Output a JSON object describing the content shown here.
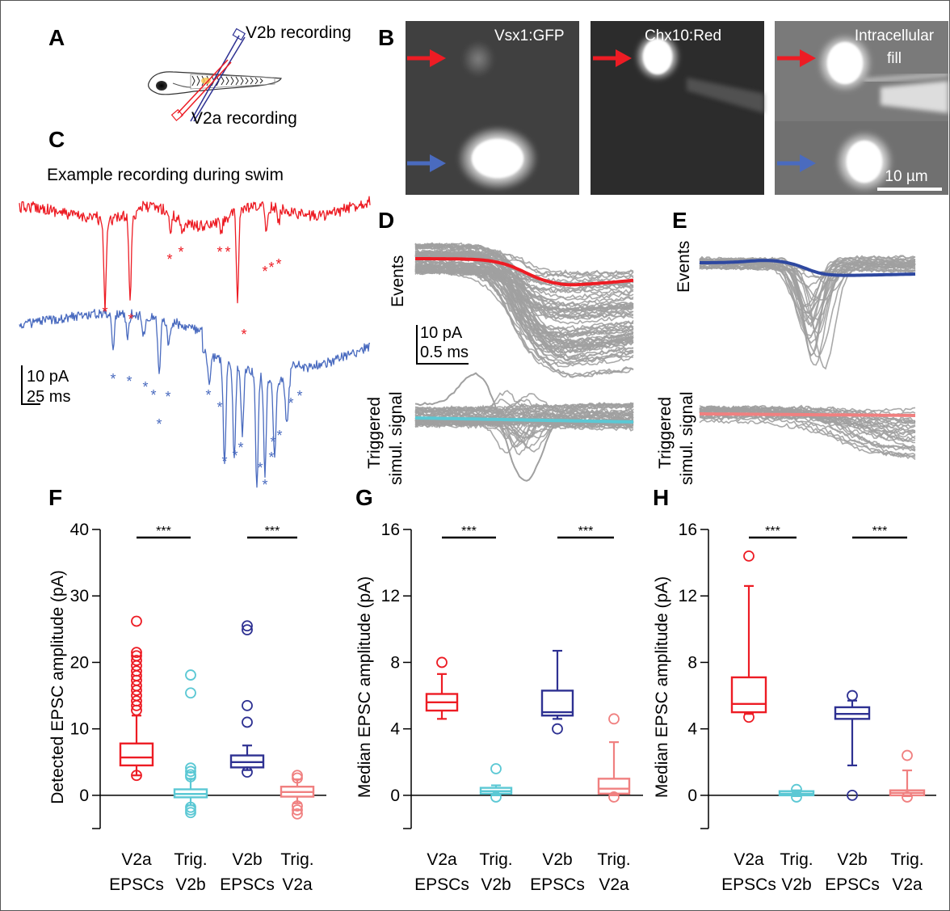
{
  "panels": {
    "A": {
      "letter": "A",
      "v2b_label": "V2b recording",
      "v2a_label": "V2a recording",
      "v2b_color": "#2e3192",
      "v2a_color": "#ed1c24"
    },
    "B": {
      "letter": "B",
      "images": [
        "Vsx1:GFP",
        "Chx10:Red",
        "Intracellular fill"
      ],
      "image3_line1": "Intracellular",
      "image3_line2": "fill",
      "scale_bar": "10 µm",
      "red_arrow_color": "#ed1c24",
      "blue_arrow_color": "#4a6bbf"
    },
    "C": {
      "letter": "C",
      "title": "Example recording during swim",
      "scale_current": "10 pA",
      "scale_time": "25 ms",
      "red_trace_color": "#ed1c24",
      "blue_trace_color": "#4a6bbf",
      "event_marker": "*"
    },
    "D": {
      "letter": "D",
      "events_label": "Events",
      "triggered_label_line1": "Triggered",
      "triggered_label_line2": "simul. signal",
      "scale_current": "10 pA",
      "scale_time": "0.5 ms",
      "mean_event_color": "#ed1c24",
      "mean_triggered_color": "#5bc8d4",
      "trace_color": "#a0a0a0"
    },
    "E": {
      "letter": "E",
      "events_label": "Events",
      "triggered_label_line1": "Triggered",
      "triggered_label_line2": "simul. signal",
      "mean_event_color": "#2e48a0",
      "mean_triggered_color": "#f08080",
      "trace_color": "#a0a0a0"
    }
  },
  "chart_data": [
    {
      "panel": "F",
      "type": "box",
      "ylabel": "Detected EPSC amplitude (pA)",
      "ylim": [
        -5,
        40
      ],
      "yticks": [
        0,
        10,
        20,
        30,
        40
      ],
      "categories": [
        {
          "line1": "V2a",
          "line2": "EPSCs"
        },
        {
          "line1": "Trig.",
          "line2": "V2b"
        },
        {
          "line1": "V2b",
          "line2": "EPSCs"
        },
        {
          "line1": "Trig.",
          "line2": "V2a"
        }
      ],
      "colors": [
        "#ed1c24",
        "#5bc8d4",
        "#2e3192",
        "#f08080"
      ],
      "boxes": [
        {
          "q1": 4.5,
          "median": 5.7,
          "q3": 7.8,
          "whisker_low": 3.0,
          "whisker_high": 12.0
        },
        {
          "q1": -0.3,
          "median": 0.2,
          "q3": 0.9,
          "whisker_low": -1.5,
          "whisker_high": 2.5
        },
        {
          "q1": 4.2,
          "median": 5.0,
          "q3": 6.0,
          "whisker_low": 3.8,
          "whisker_high": 7.5
        },
        {
          "q1": -0.2,
          "median": 0.5,
          "q3": 1.3,
          "whisker_low": -1.2,
          "whisker_high": 2.4
        }
      ],
      "outliers": [
        [
          26.2,
          21.5,
          21.0,
          20.3,
          19.5,
          18.7,
          18.0,
          17.3,
          16.5,
          15.8,
          15.0,
          14.2,
          13.5,
          12.8,
          3.0
        ],
        [
          18.1,
          15.4,
          4.1,
          3.6,
          3.1,
          2.8,
          -1.8,
          -2.2,
          -2.6
        ],
        [
          25.5,
          24.9,
          13.5,
          11.0,
          3.5
        ],
        [
          3.0,
          2.6,
          -1.6,
          -2.2,
          -2.8
        ]
      ],
      "significance": [
        {
          "from": 0,
          "to": 1,
          "label": "***"
        },
        {
          "from": 2,
          "to": 3,
          "label": "***"
        }
      ]
    },
    {
      "panel": "G",
      "type": "box",
      "ylabel": "Median EPSC amplitude (pA)",
      "ylim": [
        -2,
        16
      ],
      "yticks": [
        0,
        4,
        8,
        12,
        16
      ],
      "categories": [
        {
          "line1": "V2a",
          "line2": "EPSCs"
        },
        {
          "line1": "Trig.",
          "line2": "V2b"
        },
        {
          "line1": "V2b",
          "line2": "EPSCs"
        },
        {
          "line1": "Trig.",
          "line2": "V2a"
        }
      ],
      "colors": [
        "#ed1c24",
        "#5bc8d4",
        "#2e3192",
        "#f08080"
      ],
      "boxes": [
        {
          "q1": 5.1,
          "median": 5.6,
          "q3": 6.1,
          "whisker_low": 4.6,
          "whisker_high": 7.3
        },
        {
          "q1": 0.1,
          "median": 0.25,
          "q3": 0.45,
          "whisker_low": 0.0,
          "whisker_high": 0.6
        },
        {
          "q1": 4.8,
          "median": 5.0,
          "q3": 6.3,
          "whisker_low": 4.6,
          "whisker_high": 8.7
        },
        {
          "q1": 0.1,
          "median": 0.4,
          "q3": 1.0,
          "whisker_low": 0.0,
          "whisker_high": 3.2
        }
      ],
      "outliers": [
        [
          8.0
        ],
        [
          1.6,
          -0.1
        ],
        [
          4.0
        ],
        [
          4.6,
          -0.1
        ]
      ],
      "significance": [
        {
          "from": 0,
          "to": 1,
          "label": "***"
        },
        {
          "from": 2,
          "to": 3,
          "label": "***"
        }
      ]
    },
    {
      "panel": "H",
      "type": "box",
      "ylabel": "Median EPSC amplitude (pA)",
      "ylim": [
        -2,
        16
      ],
      "yticks": [
        0,
        4,
        8,
        12,
        16
      ],
      "categories": [
        {
          "line1": "V2a",
          "line2": "EPSCs"
        },
        {
          "line1": "Trig.",
          "line2": "V2b"
        },
        {
          "line1": "V2b",
          "line2": "EPSCs"
        },
        {
          "line1": "Trig.",
          "line2": "V2a"
        }
      ],
      "colors": [
        "#ed1c24",
        "#5bc8d4",
        "#2e3192",
        "#f08080"
      ],
      "boxes": [
        {
          "q1": 5.0,
          "median": 5.5,
          "q3": 7.1,
          "whisker_low": 4.9,
          "whisker_high": 12.6
        },
        {
          "q1": 0.0,
          "median": 0.1,
          "q3": 0.25,
          "whisker_low": -0.05,
          "whisker_high": 0.3
        },
        {
          "q1": 4.6,
          "median": 4.9,
          "q3": 5.3,
          "whisker_low": 1.8,
          "whisker_high": 5.7
        },
        {
          "q1": 0.0,
          "median": 0.15,
          "q3": 0.3,
          "whisker_low": -0.05,
          "whisker_high": 1.5
        }
      ],
      "outliers": [
        [
          14.4,
          4.7
        ],
        [
          0.35,
          -0.1
        ],
        [
          6.0,
          0.0
        ],
        [
          2.4,
          -0.1
        ]
      ],
      "significance": [
        {
          "from": 0,
          "to": 1,
          "label": "***"
        },
        {
          "from": 2,
          "to": 3,
          "label": "***"
        }
      ]
    }
  ]
}
